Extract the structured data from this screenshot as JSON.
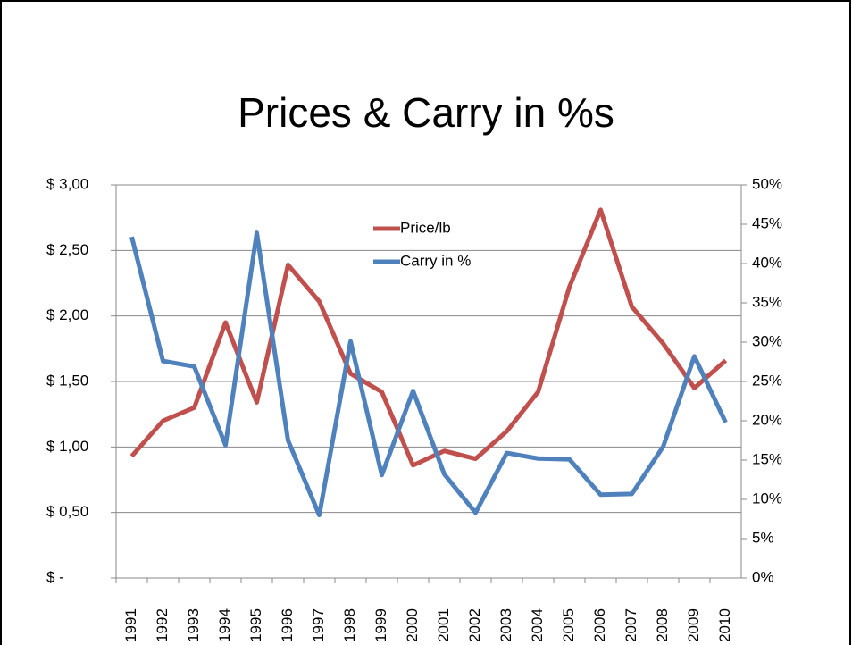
{
  "chart_data": {
    "type": "line",
    "title": "Prices & Carry in %s",
    "categories": [
      "1991",
      "1992",
      "1993",
      "1994",
      "1995",
      "1996",
      "1997",
      "1998",
      "1999",
      "2000",
      "2001",
      "2002",
      "2003",
      "2004",
      "2005",
      "2006",
      "2007",
      "2008",
      "2009",
      "2010"
    ],
    "series": [
      {
        "name": "Price/lb",
        "color": "#c0504d",
        "values": [
          0.93,
          1.2,
          1.3,
          1.95,
          1.34,
          2.39,
          2.11,
          1.56,
          1.42,
          0.86,
          0.97,
          0.91,
          1.12,
          1.42,
          2.22,
          2.81,
          2.07,
          1.79,
          1.45,
          1.66
        ]
      },
      {
        "name": "Carry in %",
        "color": "#4f81bd",
        "axis": "y2",
        "values": [
          43.4,
          27.6,
          26.9,
          16.9,
          43.9,
          17.5,
          8.0,
          30.1,
          13.1,
          23.8,
          13.2,
          8.3,
          15.9,
          15.2,
          15.1,
          10.6,
          10.7,
          16.7,
          28.2,
          19.8
        ]
      }
    ],
    "ylim": [
      0,
      3
    ],
    "yticks": [
      {
        "value": 0,
        "label": "$ -"
      },
      {
        "value": 0.5,
        "label": "$ 0,50"
      },
      {
        "value": 1,
        "label": "$ 1,00"
      },
      {
        "value": 1.5,
        "label": "$ 1,50"
      },
      {
        "value": 2,
        "label": "$ 2,00"
      },
      {
        "value": 2.5,
        "label": "$ 2,50"
      },
      {
        "value": 3,
        "label": "$ 3,00"
      }
    ],
    "y2lim": [
      0,
      50
    ],
    "y2ticks": [
      {
        "value": 0,
        "label": "0%"
      },
      {
        "value": 5,
        "label": "5%"
      },
      {
        "value": 10,
        "label": "10%"
      },
      {
        "value": 15,
        "label": "15%"
      },
      {
        "value": 20,
        "label": "20%"
      },
      {
        "value": 25,
        "label": "25%"
      },
      {
        "value": 30,
        "label": "30%"
      },
      {
        "value": 35,
        "label": "35%"
      },
      {
        "value": 40,
        "label": "40%"
      },
      {
        "value": 45,
        "label": "45%"
      },
      {
        "value": 50,
        "label": "50%"
      }
    ],
    "grid": true
  }
}
